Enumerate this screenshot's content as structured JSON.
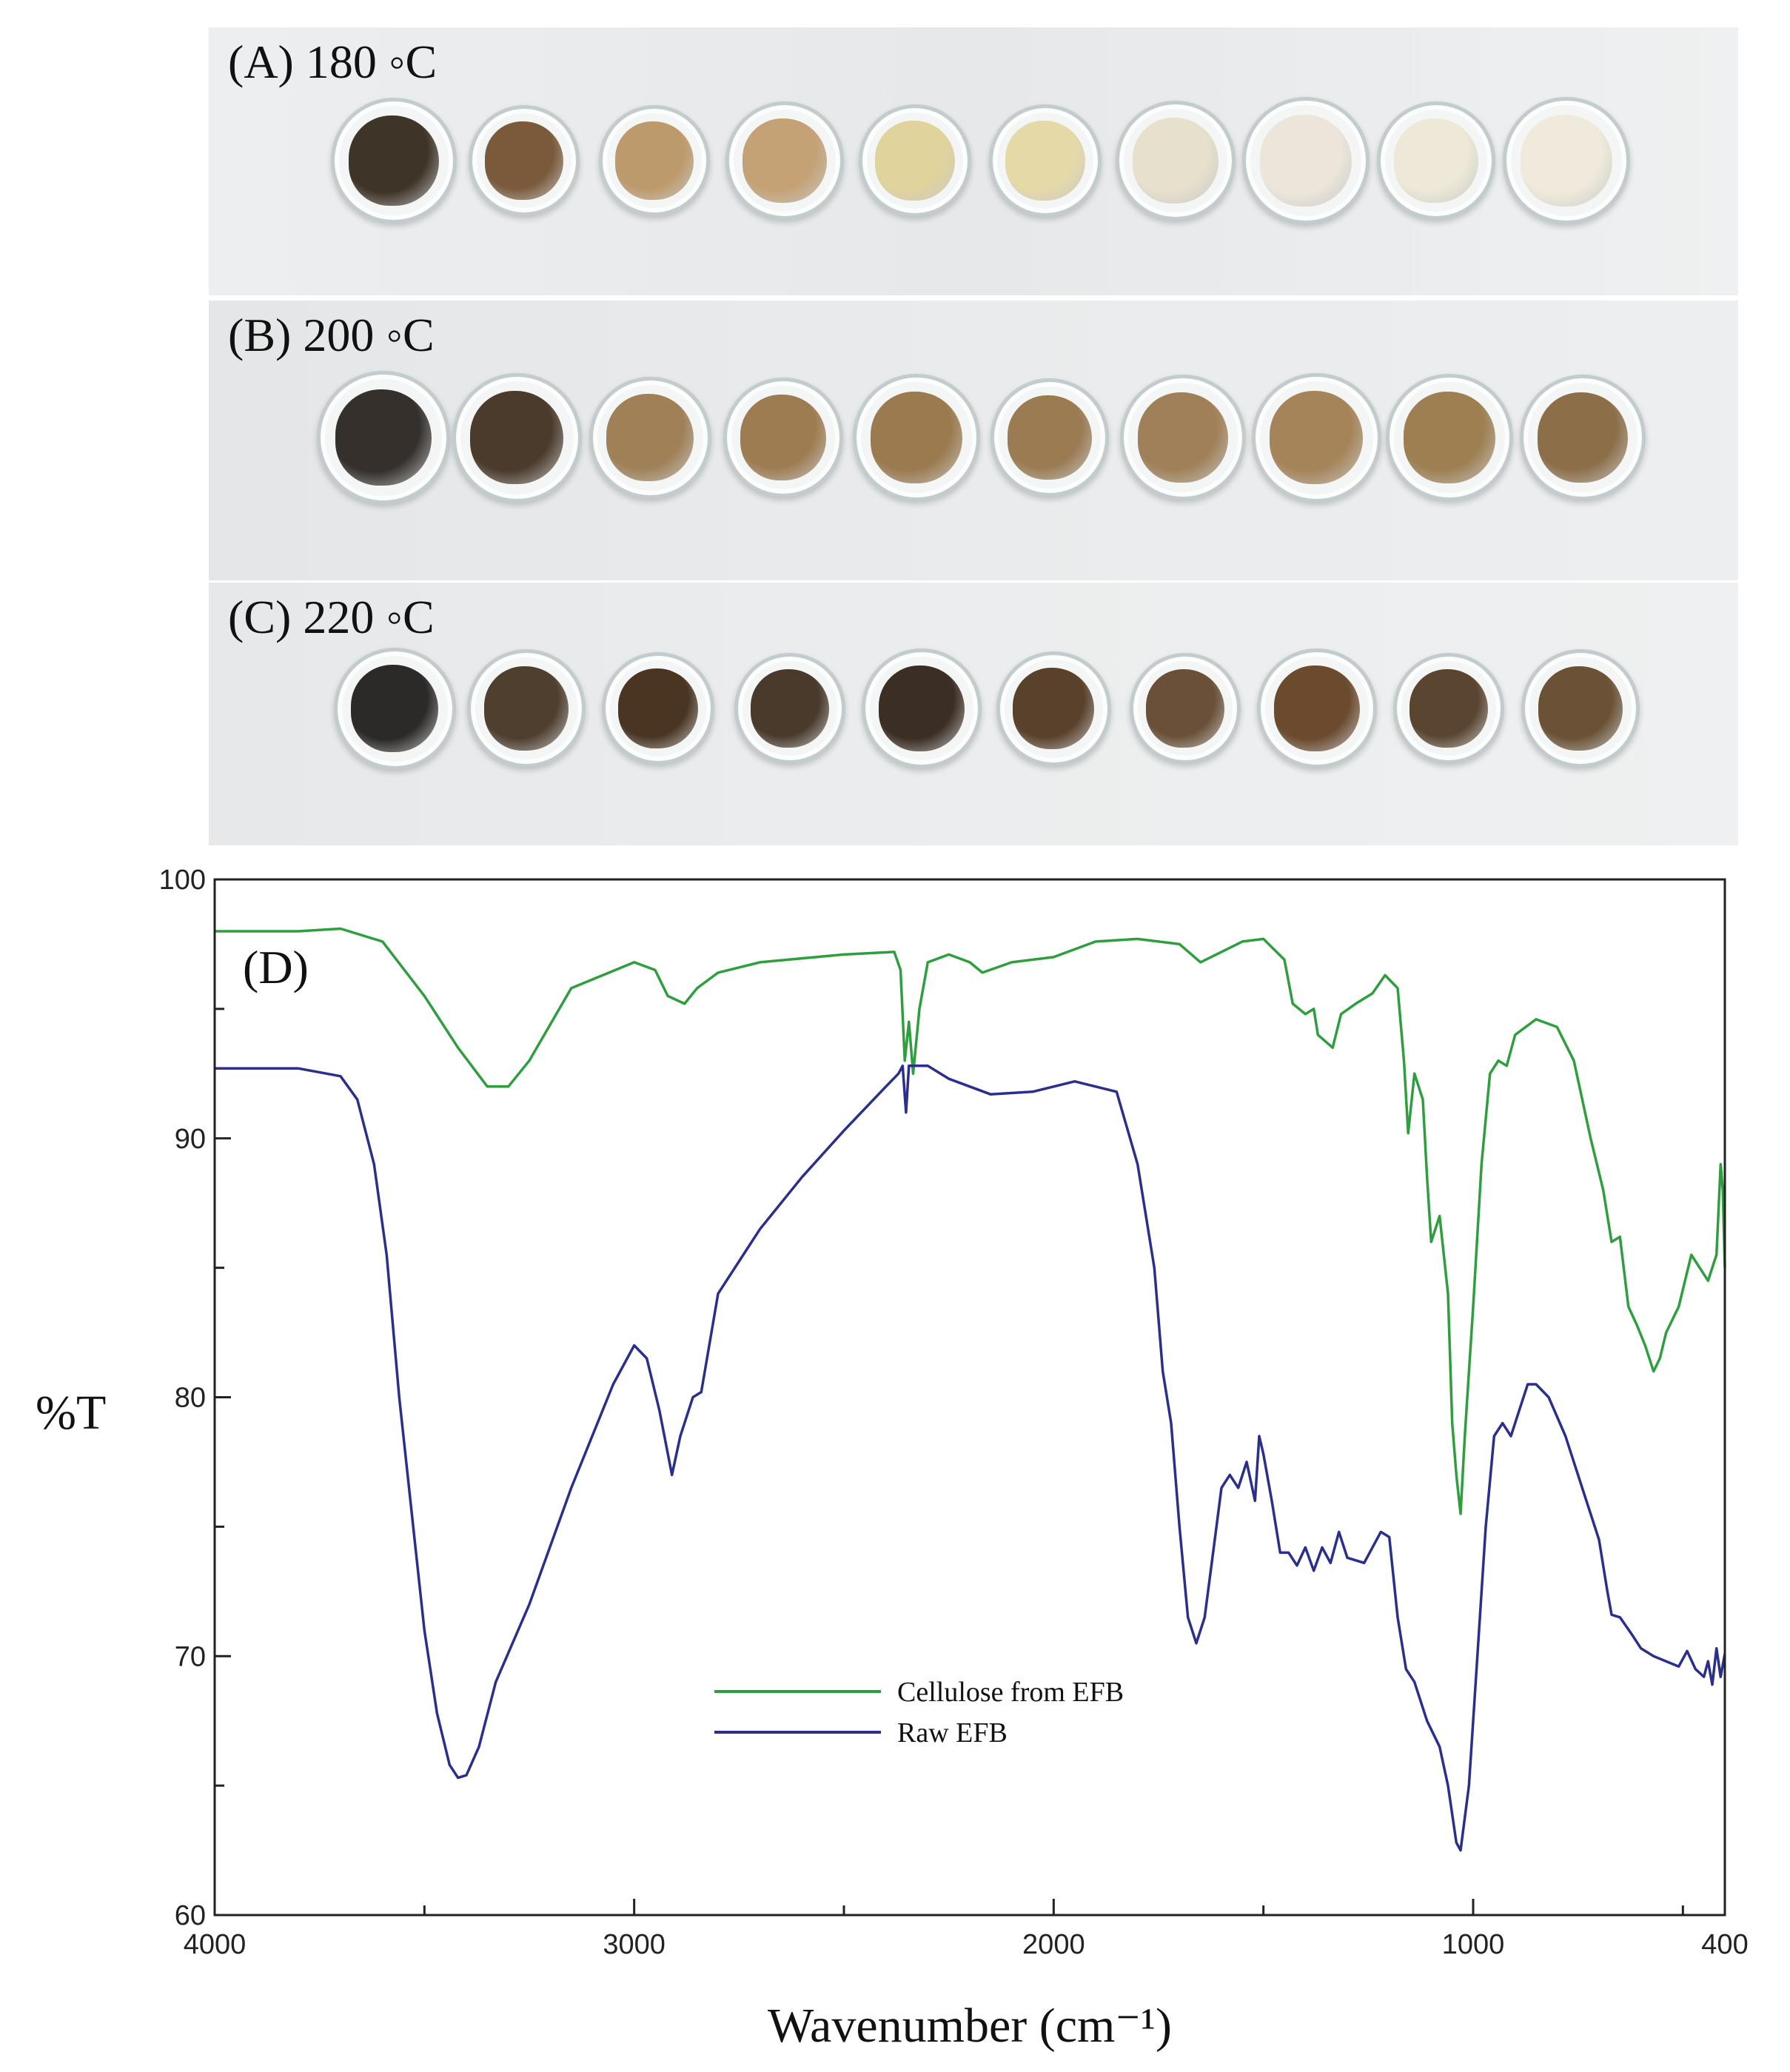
{
  "photo_panels": [
    {
      "label": "(A) 180 ◦C",
      "dish_colors": [
        "#3f3428",
        "#7b5a3b",
        "#bd9a6c",
        "#c5a276",
        "#e1d39c",
        "#e6d9a8",
        "#e6e0cc",
        "#ece6da",
        "#ede8d7",
        "#efeadb"
      ]
    },
    {
      "label": "(B) 200 ◦C",
      "dish_colors": [
        "#35302c",
        "#4a3b2c",
        "#9f8057",
        "#9e7c52",
        "#9b7a4f",
        "#9a7b52",
        "#a08058",
        "#a58459",
        "#9e7f52",
        "#8c6f49"
      ]
    },
    {
      "label": "(C) 220 ◦C",
      "dish_colors": [
        "#2c2a28",
        "#4f3f2f",
        "#4a3422",
        "#4a3a2c",
        "#3b2e24",
        "#5a412b",
        "#6a5038",
        "#6b4a2e",
        "#5a4530",
        "#6b5236"
      ]
    }
  ],
  "chart_data": {
    "type": "line",
    "panel_label": "(D)",
    "xlabel": "Wavenumber (cm⁻¹)",
    "ylabel": "%T",
    "xlim": [
      4000,
      400
    ],
    "ylim": [
      60,
      100
    ],
    "x_ticks": [
      4000,
      3000,
      2000,
      1000,
      400
    ],
    "y_ticks": [
      60,
      70,
      80,
      90,
      100
    ],
    "grid": false,
    "legend_position": "bottom-center",
    "series": [
      {
        "name": "Cellulose from EFB",
        "color": "#2e9e3e",
        "points": [
          [
            4000,
            98.0
          ],
          [
            3800,
            98.0
          ],
          [
            3700,
            98.1
          ],
          [
            3600,
            97.6
          ],
          [
            3500,
            95.5
          ],
          [
            3420,
            93.5
          ],
          [
            3350,
            92.0
          ],
          [
            3300,
            92.0
          ],
          [
            3250,
            93.0
          ],
          [
            3150,
            95.8
          ],
          [
            3000,
            96.8
          ],
          [
            2950,
            96.5
          ],
          [
            2920,
            95.5
          ],
          [
            2880,
            95.2
          ],
          [
            2850,
            95.8
          ],
          [
            2800,
            96.4
          ],
          [
            2700,
            96.8
          ],
          [
            2500,
            97.1
          ],
          [
            2380,
            97.2
          ],
          [
            2365,
            96.5
          ],
          [
            2355,
            93.0
          ],
          [
            2345,
            94.5
          ],
          [
            2335,
            92.5
          ],
          [
            2320,
            95.0
          ],
          [
            2300,
            96.8
          ],
          [
            2250,
            97.1
          ],
          [
            2200,
            96.8
          ],
          [
            2170,
            96.4
          ],
          [
            2100,
            96.8
          ],
          [
            2000,
            97.0
          ],
          [
            1900,
            97.6
          ],
          [
            1800,
            97.7
          ],
          [
            1700,
            97.5
          ],
          [
            1650,
            96.8
          ],
          [
            1600,
            97.2
          ],
          [
            1550,
            97.6
          ],
          [
            1500,
            97.7
          ],
          [
            1450,
            96.9
          ],
          [
            1430,
            95.2
          ],
          [
            1400,
            94.8
          ],
          [
            1380,
            95.0
          ],
          [
            1370,
            94.0
          ],
          [
            1335,
            93.5
          ],
          [
            1315,
            94.8
          ],
          [
            1280,
            95.2
          ],
          [
            1240,
            95.6
          ],
          [
            1210,
            96.3
          ],
          [
            1180,
            95.8
          ],
          [
            1165,
            93.0
          ],
          [
            1155,
            90.2
          ],
          [
            1140,
            92.5
          ],
          [
            1120,
            91.5
          ],
          [
            1110,
            88.5
          ],
          [
            1100,
            86.0
          ],
          [
            1080,
            87.0
          ],
          [
            1060,
            84.0
          ],
          [
            1050,
            79.0
          ],
          [
            1040,
            77.0
          ],
          [
            1030,
            75.5
          ],
          [
            1020,
            78.5
          ],
          [
            1000,
            83.5
          ],
          [
            980,
            89.0
          ],
          [
            960,
            92.5
          ],
          [
            940,
            93.0
          ],
          [
            920,
            92.8
          ],
          [
            900,
            94.0
          ],
          [
            850,
            94.6
          ],
          [
            800,
            94.3
          ],
          [
            760,
            93.0
          ],
          [
            720,
            90.0
          ],
          [
            690,
            88.0
          ],
          [
            670,
            86.0
          ],
          [
            650,
            86.2
          ],
          [
            630,
            83.5
          ],
          [
            610,
            82.8
          ],
          [
            590,
            82.0
          ],
          [
            570,
            81.0
          ],
          [
            555,
            81.5
          ],
          [
            540,
            82.5
          ],
          [
            510,
            83.5
          ],
          [
            480,
            85.5
          ],
          [
            460,
            85.0
          ],
          [
            440,
            84.5
          ],
          [
            420,
            85.5
          ],
          [
            410,
            89.0
          ],
          [
            405,
            88.0
          ],
          [
            400,
            85.0
          ]
        ]
      },
      {
        "name": "Raw EFB",
        "color": "#2b2f8c",
        "points": [
          [
            4000,
            92.7
          ],
          [
            3800,
            92.7
          ],
          [
            3700,
            92.4
          ],
          [
            3660,
            91.5
          ],
          [
            3620,
            89.0
          ],
          [
            3590,
            85.5
          ],
          [
            3560,
            80.0
          ],
          [
            3530,
            75.5
          ],
          [
            3500,
            71.0
          ],
          [
            3470,
            67.8
          ],
          [
            3440,
            65.8
          ],
          [
            3420,
            65.3
          ],
          [
            3400,
            65.4
          ],
          [
            3370,
            66.5
          ],
          [
            3330,
            69.0
          ],
          [
            3250,
            72.0
          ],
          [
            3150,
            76.5
          ],
          [
            3050,
            80.5
          ],
          [
            3000,
            82.0
          ],
          [
            2970,
            81.5
          ],
          [
            2940,
            79.5
          ],
          [
            2910,
            77.0
          ],
          [
            2890,
            78.5
          ],
          [
            2860,
            80.0
          ],
          [
            2840,
            80.2
          ],
          [
            2800,
            84.0
          ],
          [
            2700,
            86.5
          ],
          [
            2600,
            88.5
          ],
          [
            2500,
            90.3
          ],
          [
            2400,
            92.0
          ],
          [
            2370,
            92.5
          ],
          [
            2360,
            92.8
          ],
          [
            2352,
            91.0
          ],
          [
            2345,
            92.8
          ],
          [
            2300,
            92.8
          ],
          [
            2250,
            92.3
          ],
          [
            2150,
            91.7
          ],
          [
            2050,
            91.8
          ],
          [
            1950,
            92.2
          ],
          [
            1850,
            91.8
          ],
          [
            1800,
            89.0
          ],
          [
            1760,
            85.0
          ],
          [
            1740,
            81.0
          ],
          [
            1720,
            79.0
          ],
          [
            1700,
            75.0
          ],
          [
            1680,
            71.5
          ],
          [
            1660,
            70.5
          ],
          [
            1640,
            71.5
          ],
          [
            1620,
            74.0
          ],
          [
            1600,
            76.5
          ],
          [
            1580,
            77.0
          ],
          [
            1560,
            76.5
          ],
          [
            1540,
            77.5
          ],
          [
            1520,
            76.0
          ],
          [
            1510,
            78.5
          ],
          [
            1500,
            77.8
          ],
          [
            1480,
            76.0
          ],
          [
            1460,
            74.0
          ],
          [
            1440,
            74.0
          ],
          [
            1420,
            73.5
          ],
          [
            1400,
            74.2
          ],
          [
            1380,
            73.3
          ],
          [
            1360,
            74.2
          ],
          [
            1340,
            73.6
          ],
          [
            1320,
            74.8
          ],
          [
            1300,
            73.8
          ],
          [
            1260,
            73.6
          ],
          [
            1220,
            74.8
          ],
          [
            1200,
            74.6
          ],
          [
            1180,
            71.5
          ],
          [
            1160,
            69.5
          ],
          [
            1140,
            69.0
          ],
          [
            1110,
            67.5
          ],
          [
            1080,
            66.5
          ],
          [
            1060,
            65.0
          ],
          [
            1040,
            62.8
          ],
          [
            1030,
            62.5
          ],
          [
            1010,
            65.0
          ],
          [
            990,
            70.0
          ],
          [
            970,
            75.0
          ],
          [
            950,
            78.5
          ],
          [
            930,
            79.0
          ],
          [
            910,
            78.5
          ],
          [
            890,
            79.5
          ],
          [
            870,
            80.5
          ],
          [
            850,
            80.5
          ],
          [
            820,
            80.0
          ],
          [
            780,
            78.5
          ],
          [
            740,
            76.5
          ],
          [
            700,
            74.5
          ],
          [
            680,
            72.5
          ],
          [
            670,
            71.6
          ],
          [
            650,
            71.5
          ],
          [
            620,
            70.8
          ],
          [
            600,
            70.3
          ],
          [
            570,
            70.0
          ],
          [
            540,
            69.8
          ],
          [
            510,
            69.6
          ],
          [
            490,
            70.2
          ],
          [
            470,
            69.5
          ],
          [
            450,
            69.2
          ],
          [
            440,
            69.8
          ],
          [
            430,
            68.9
          ],
          [
            420,
            70.3
          ],
          [
            410,
            69.2
          ],
          [
            400,
            70.1
          ]
        ]
      }
    ]
  }
}
